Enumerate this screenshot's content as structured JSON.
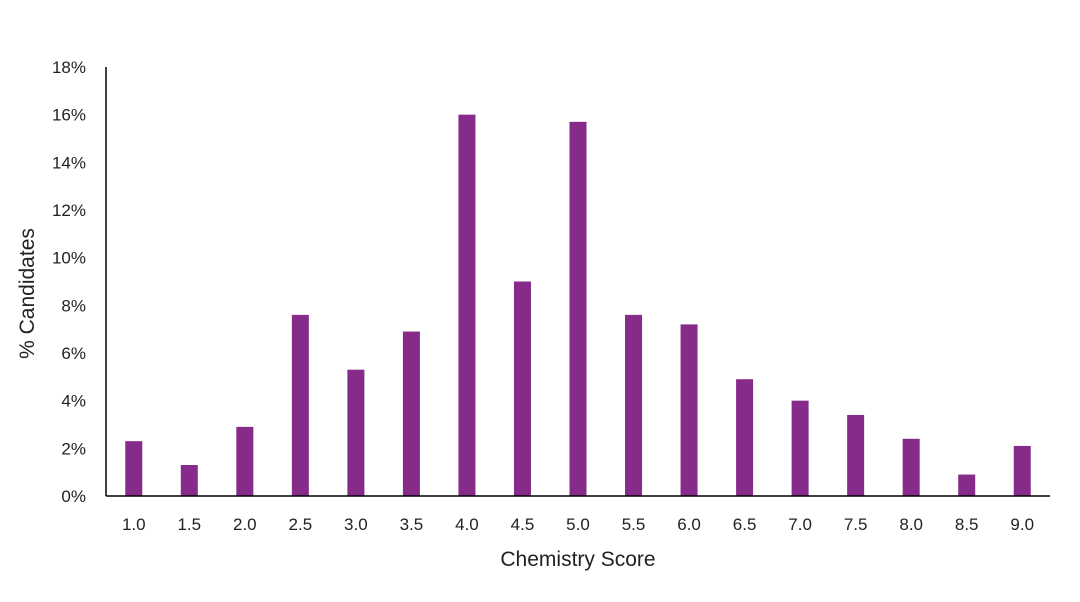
{
  "chart_data": {
    "type": "bar",
    "title": "",
    "xlabel": "Chemistry Score",
    "ylabel": "% Candidates",
    "categories": [
      "1.0",
      "1.5",
      "2.0",
      "2.5",
      "3.0",
      "3.5",
      "4.0",
      "4.5",
      "5.0",
      "5.5",
      "6.0",
      "6.5",
      "7.0",
      "7.5",
      "8.0",
      "8.5",
      "9.0"
    ],
    "values": [
      2.3,
      1.3,
      2.9,
      7.6,
      5.3,
      6.9,
      16.0,
      9.0,
      15.7,
      7.6,
      7.2,
      4.9,
      4.0,
      3.4,
      2.4,
      0.9,
      2.1
    ],
    "ylim": [
      0,
      18
    ],
    "yticks": [
      0,
      2,
      4,
      6,
      8,
      10,
      12,
      14,
      16,
      18
    ],
    "ytick_labels": [
      "0%",
      "2%",
      "4%",
      "6%",
      "8%",
      "10%",
      "12%",
      "14%",
      "16%",
      "18%"
    ],
    "bar_color": "#862b8a",
    "grid": false,
    "legend": "none"
  }
}
